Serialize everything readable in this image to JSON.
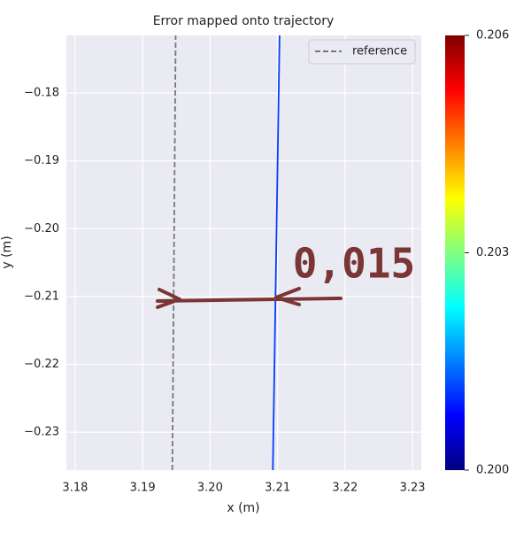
{
  "chart_data": {
    "type": "line",
    "title": "Error mapped onto trajectory",
    "xlabel": "x (m)",
    "ylabel": "y (m)",
    "xlim": [
      3.1787,
      3.2313
    ],
    "ylim": [
      -0.2356,
      -0.1715
    ],
    "xticks": [
      3.18,
      3.19,
      {
        "value": 3.2,
        "label": "3.20"
      },
      3.21,
      3.22,
      3.23
    ],
    "yticks": [
      {
        "value": -0.18,
        "label": "−0.18"
      },
      {
        "value": -0.19,
        "label": "−0.19"
      },
      {
        "value": -0.2,
        "label": "−0.20"
      },
      {
        "value": -0.21,
        "label": "−0.21"
      },
      {
        "value": -0.22,
        "label": "−0.22"
      },
      {
        "value": -0.23,
        "label": "−0.23"
      }
    ],
    "grid": true,
    "legend": "upper right",
    "series": [
      {
        "name": "reference",
        "color": "#777777",
        "dashed": true,
        "x": [
          3.1944,
          3.1949
        ],
        "y": [
          -0.2356,
          -0.1715
        ]
      },
      {
        "color": "#0040ff",
        "x": [
          3.2093,
          3.2103
        ],
        "y": [
          -0.2356,
          -0.1715
        ]
      }
    ],
    "colorbar": {
      "clim": [
        0.2,
        0.206
      ],
      "ticks": [
        {
          "value": 0.2,
          "label": "0.200"
        },
        0.203,
        0.206
      ]
    },
    "annotation": "0,015"
  }
}
